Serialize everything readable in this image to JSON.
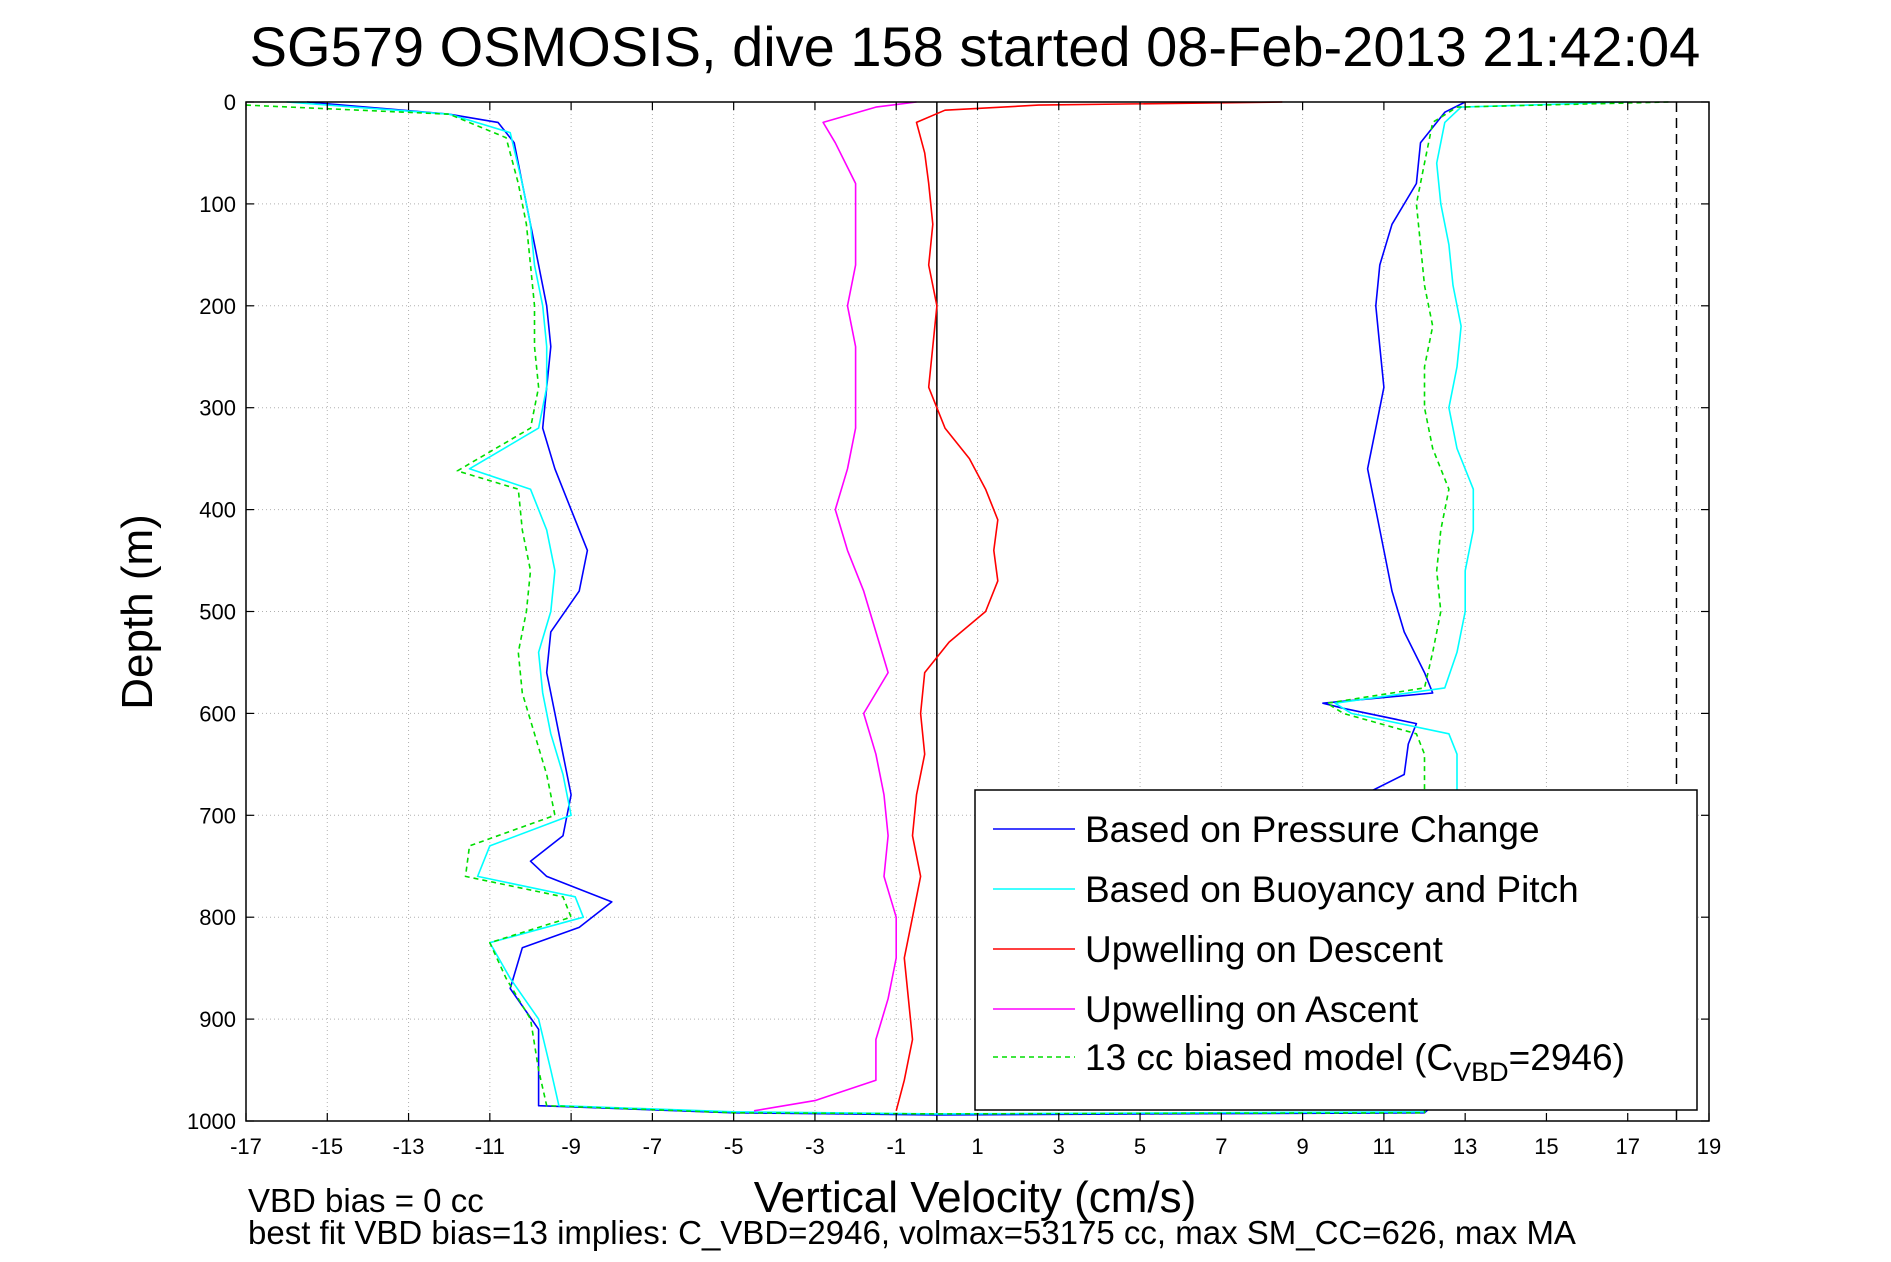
{
  "chart_data": {
    "type": "line",
    "title": "SG579 OSMOSIS, dive 158 started 08-Feb-2013 21:42:04",
    "xlabel": "Vertical Velocity (cm/s)",
    "ylabel": "Depth (m)",
    "xlim": [
      -17,
      19
    ],
    "ylim": [
      1000,
      0
    ],
    "y_reversed": true,
    "grid": true,
    "x_ticks": [
      -17,
      -15,
      -13,
      -11,
      -9,
      -7,
      -5,
      -3,
      -1,
      1,
      3,
      5,
      7,
      9,
      11,
      13,
      15,
      17,
      19
    ],
    "y_ticks": [
      0,
      100,
      200,
      300,
      400,
      500,
      600,
      700,
      800,
      900,
      1000
    ],
    "reference_lines": [
      {
        "type": "vertical",
        "x": 0,
        "style": "solid",
        "color": "#000000"
      },
      {
        "type": "vertical",
        "x": 18.2,
        "style": "dashed",
        "color": "#000000"
      }
    ],
    "legend_location": "bottom-right",
    "series": [
      {
        "name": "Based on Pressure Change",
        "color": "#0000ff",
        "style": "solid",
        "points": [
          [
            -15.5,
            0
          ],
          [
            -12.0,
            12
          ],
          [
            -10.8,
            20
          ],
          [
            -10.4,
            40
          ],
          [
            -10.2,
            80
          ],
          [
            -10.0,
            120
          ],
          [
            -9.8,
            160
          ],
          [
            -9.6,
            200
          ],
          [
            -9.5,
            240
          ],
          [
            -9.6,
            280
          ],
          [
            -9.7,
            320
          ],
          [
            -9.4,
            360
          ],
          [
            -9.0,
            400
          ],
          [
            -8.6,
            440
          ],
          [
            -8.8,
            480
          ],
          [
            -9.5,
            520
          ],
          [
            -9.6,
            560
          ],
          [
            -9.4,
            600
          ],
          [
            -9.2,
            640
          ],
          [
            -9.0,
            680
          ],
          [
            -9.2,
            720
          ],
          [
            -10.0,
            745
          ],
          [
            -9.6,
            760
          ],
          [
            -8.0,
            785
          ],
          [
            -8.8,
            810
          ],
          [
            -10.2,
            830
          ],
          [
            -10.5,
            870
          ],
          [
            -9.8,
            910
          ],
          [
            -9.8,
            950
          ],
          [
            -9.8,
            985
          ],
          [
            -5.0,
            992
          ],
          [
            0.0,
            994
          ],
          [
            12.0,
            992
          ],
          [
            12.2,
            985
          ],
          [
            12.0,
            960
          ],
          [
            11.5,
            900
          ],
          [
            10.8,
            820
          ],
          [
            10.5,
            760
          ],
          [
            10.8,
            700
          ],
          [
            10.5,
            680
          ],
          [
            11.5,
            660
          ],
          [
            11.6,
            630
          ],
          [
            11.8,
            610
          ],
          [
            10.0,
            595
          ],
          [
            9.5,
            590
          ],
          [
            12.2,
            580
          ],
          [
            12.0,
            560
          ],
          [
            11.5,
            520
          ],
          [
            11.2,
            480
          ],
          [
            11.0,
            440
          ],
          [
            10.8,
            400
          ],
          [
            10.6,
            360
          ],
          [
            10.8,
            320
          ],
          [
            11.0,
            280
          ],
          [
            10.9,
            240
          ],
          [
            10.8,
            200
          ],
          [
            10.9,
            160
          ],
          [
            11.2,
            120
          ],
          [
            11.8,
            80
          ],
          [
            11.9,
            40
          ],
          [
            12.5,
            10
          ],
          [
            13.0,
            0
          ]
        ]
      },
      {
        "name": "Based on Buoyancy and Pitch",
        "color": "#00ffff",
        "style": "solid",
        "points": [
          [
            -16.0,
            0
          ],
          [
            -12.0,
            12
          ],
          [
            -10.5,
            30
          ],
          [
            -10.2,
            80
          ],
          [
            -10.0,
            120
          ],
          [
            -9.9,
            160
          ],
          [
            -9.7,
            200
          ],
          [
            -9.6,
            240
          ],
          [
            -9.6,
            280
          ],
          [
            -9.8,
            320
          ],
          [
            -11.5,
            360
          ],
          [
            -10.0,
            380
          ],
          [
            -9.6,
            420
          ],
          [
            -9.4,
            460
          ],
          [
            -9.5,
            500
          ],
          [
            -9.8,
            540
          ],
          [
            -9.7,
            580
          ],
          [
            -9.5,
            620
          ],
          [
            -9.2,
            660
          ],
          [
            -9.0,
            700
          ],
          [
            -11.0,
            730
          ],
          [
            -11.3,
            760
          ],
          [
            -8.9,
            780
          ],
          [
            -8.7,
            800
          ],
          [
            -11.0,
            825
          ],
          [
            -10.5,
            860
          ],
          [
            -9.8,
            900
          ],
          [
            -9.5,
            950
          ],
          [
            -9.3,
            985
          ],
          [
            -5.0,
            991
          ],
          [
            0.0,
            993
          ],
          [
            12.0,
            991
          ],
          [
            12.3,
            960
          ],
          [
            12.5,
            900
          ],
          [
            12.8,
            700
          ],
          [
            12.8,
            640
          ],
          [
            12.6,
            620
          ],
          [
            10.2,
            600
          ],
          [
            9.8,
            590
          ],
          [
            12.5,
            575
          ],
          [
            12.8,
            540
          ],
          [
            13.0,
            500
          ],
          [
            13.0,
            460
          ],
          [
            13.2,
            420
          ],
          [
            13.2,
            380
          ],
          [
            12.8,
            340
          ],
          [
            12.6,
            300
          ],
          [
            12.8,
            260
          ],
          [
            12.9,
            220
          ],
          [
            12.7,
            180
          ],
          [
            12.6,
            140
          ],
          [
            12.4,
            100
          ],
          [
            12.3,
            60
          ],
          [
            12.5,
            20
          ],
          [
            12.9,
            5
          ],
          [
            17.0,
            0
          ]
        ]
      },
      {
        "name": "Upwelling on Descent",
        "color": "#ff0000",
        "style": "solid",
        "points": [
          [
            8.5,
            0
          ],
          [
            2.5,
            3
          ],
          [
            0.2,
            8
          ],
          [
            -0.5,
            20
          ],
          [
            -0.3,
            50
          ],
          [
            -0.2,
            80
          ],
          [
            -0.1,
            120
          ],
          [
            -0.2,
            160
          ],
          [
            0.0,
            200
          ],
          [
            -0.1,
            240
          ],
          [
            -0.2,
            280
          ],
          [
            0.2,
            320
          ],
          [
            0.8,
            350
          ],
          [
            1.2,
            380
          ],
          [
            1.5,
            410
          ],
          [
            1.4,
            440
          ],
          [
            1.5,
            470
          ],
          [
            1.2,
            500
          ],
          [
            0.3,
            530
          ],
          [
            -0.3,
            560
          ],
          [
            -0.4,
            600
          ],
          [
            -0.3,
            640
          ],
          [
            -0.5,
            680
          ],
          [
            -0.6,
            720
          ],
          [
            -0.4,
            760
          ],
          [
            -0.6,
            800
          ],
          [
            -0.8,
            840
          ],
          [
            -0.7,
            880
          ],
          [
            -0.6,
            920
          ],
          [
            -0.8,
            960
          ],
          [
            -1.0,
            990
          ]
        ]
      },
      {
        "name": "Upwelling on Ascent",
        "color": "#ff00ff",
        "style": "solid",
        "points": [
          [
            -4.5,
            990
          ],
          [
            -3.0,
            980
          ],
          [
            -1.5,
            960
          ],
          [
            -1.5,
            920
          ],
          [
            -1.2,
            880
          ],
          [
            -1.0,
            840
          ],
          [
            -1.0,
            800
          ],
          [
            -1.3,
            760
          ],
          [
            -1.2,
            720
          ],
          [
            -1.3,
            680
          ],
          [
            -1.5,
            640
          ],
          [
            -1.8,
            600
          ],
          [
            -1.2,
            560
          ],
          [
            -1.5,
            520
          ],
          [
            -1.8,
            480
          ],
          [
            -2.2,
            440
          ],
          [
            -2.5,
            400
          ],
          [
            -2.2,
            360
          ],
          [
            -2.0,
            320
          ],
          [
            -2.0,
            280
          ],
          [
            -2.0,
            240
          ],
          [
            -2.2,
            200
          ],
          [
            -2.0,
            160
          ],
          [
            -2.0,
            120
          ],
          [
            -2.0,
            80
          ],
          [
            -2.5,
            40
          ],
          [
            -2.8,
            20
          ],
          [
            -1.5,
            5
          ],
          [
            -0.5,
            0
          ]
        ]
      },
      {
        "name": "13 cc biased model (C_VBD=2946)",
        "color": "#00dd00",
        "style": "dashed",
        "points": [
          [
            -17.0,
            3
          ],
          [
            -12.0,
            12
          ],
          [
            -10.6,
            35
          ],
          [
            -10.3,
            80
          ],
          [
            -10.1,
            120
          ],
          [
            -10.0,
            160
          ],
          [
            -9.9,
            200
          ],
          [
            -9.9,
            240
          ],
          [
            -9.8,
            280
          ],
          [
            -10.0,
            320
          ],
          [
            -11.8,
            362
          ],
          [
            -10.3,
            380
          ],
          [
            -10.2,
            420
          ],
          [
            -10.0,
            460
          ],
          [
            -10.1,
            500
          ],
          [
            -10.3,
            540
          ],
          [
            -10.2,
            580
          ],
          [
            -9.9,
            620
          ],
          [
            -9.6,
            660
          ],
          [
            -9.4,
            700
          ],
          [
            -11.5,
            730
          ],
          [
            -11.6,
            760
          ],
          [
            -9.2,
            780
          ],
          [
            -9.0,
            800
          ],
          [
            -11.0,
            825
          ],
          [
            -10.6,
            860
          ],
          [
            -10.0,
            900
          ],
          [
            -9.8,
            950
          ],
          [
            -9.6,
            985
          ],
          [
            -5.0,
            992
          ],
          [
            0.0,
            993
          ],
          [
            12.0,
            992
          ],
          [
            12.0,
            960
          ],
          [
            12.0,
            900
          ],
          [
            12.0,
            700
          ],
          [
            12.0,
            640
          ],
          [
            11.8,
            620
          ],
          [
            10.0,
            600
          ],
          [
            9.6,
            590
          ],
          [
            12.0,
            575
          ],
          [
            12.2,
            540
          ],
          [
            12.4,
            500
          ],
          [
            12.3,
            460
          ],
          [
            12.4,
            420
          ],
          [
            12.6,
            380
          ],
          [
            12.2,
            340
          ],
          [
            12.0,
            300
          ],
          [
            12.0,
            260
          ],
          [
            12.2,
            220
          ],
          [
            12.0,
            180
          ],
          [
            11.9,
            140
          ],
          [
            11.8,
            100
          ],
          [
            12.0,
            60
          ],
          [
            12.2,
            20
          ],
          [
            12.8,
            5
          ],
          [
            18.0,
            0
          ]
        ]
      }
    ],
    "legend": [
      {
        "label": "Based on Pressure Change",
        "color": "#0000ff",
        "style": "solid"
      },
      {
        "label": "Based on Buoyancy and Pitch",
        "color": "#00ffff",
        "style": "solid"
      },
      {
        "label": "Upwelling on Descent",
        "color": "#ff0000",
        "style": "solid"
      },
      {
        "label": "Upwelling on Ascent",
        "color": "#ff00ff",
        "style": "solid"
      },
      {
        "label": "13 cc biased model (C",
        "sub": "VBD",
        "suffix": "=2946)",
        "color": "#00dd00",
        "style": "dashed"
      }
    ],
    "annotations": [
      "VBD bias = 0 cc",
      "best fit VBD bias=13 implies: C_VBD=2946, volmax=53175 cc, max SM_CC=626, max MA"
    ]
  }
}
